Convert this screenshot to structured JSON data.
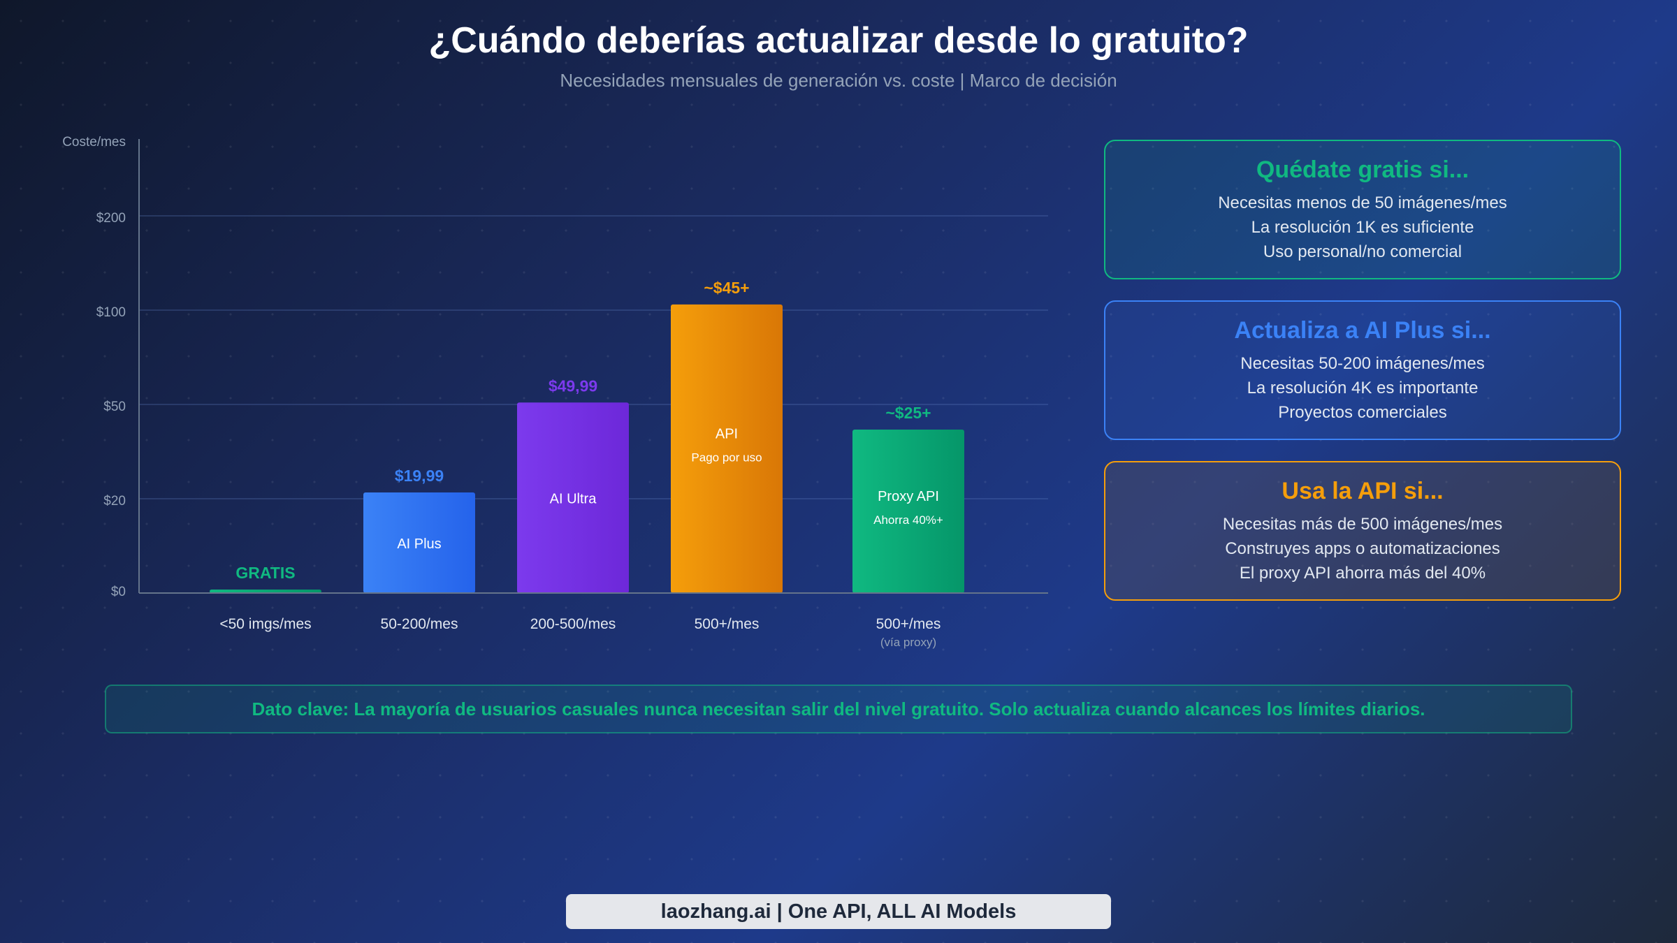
{
  "header": {
    "title": "¿Cuándo deberías actualizar desde lo gratuito?",
    "subtitle": "Necesidades mensuales de generación vs. coste | Marco de decisión"
  },
  "chart_data": {
    "type": "bar",
    "ylabel": "Coste/mes",
    "y_ticks": [
      "$0",
      "$20",
      "$50",
      "$100",
      "$200"
    ],
    "y_tick_values": [
      0,
      20,
      50,
      100,
      200
    ],
    "scale": "non-linear (evenly spaced ticks)",
    "categories": [
      "<50 imgs/mes",
      "50-200/mes",
      "200-500/mes",
      "500+/mes",
      "500+/mes"
    ],
    "category_notes": [
      "",
      "",
      "",
      "",
      "(vía proxy)"
    ],
    "values": [
      0,
      22,
      51,
      106,
      42
    ],
    "price_labels": [
      "GRATIS",
      "$19,99",
      "$49,99",
      "~$45+",
      "~$25+"
    ],
    "bar_names": [
      "",
      "AI Plus",
      "AI Ultra",
      "API",
      "Proxy API"
    ],
    "bar_notes": [
      "",
      "",
      "",
      "Pago por uso",
      "Ahorra 40%+"
    ],
    "colors": [
      [
        "#10b981",
        "#059669"
      ],
      [
        "#3b82f6",
        "#2563eb"
      ],
      [
        "#7c3aed",
        "#6d28d9"
      ],
      [
        "#f59e0b",
        "#d97706"
      ],
      [
        "#10b981",
        "#059669"
      ]
    ],
    "label_colors": [
      "#10b981",
      "#3b82f6",
      "#7c3aed",
      "#f59e0b",
      "#10b981"
    ],
    "grid": true
  },
  "cards": [
    {
      "title": "Quédate gratis si...",
      "color": "#10b981",
      "lines": [
        "Necesitas menos de 50 imágenes/mes",
        "La resolución 1K es suficiente",
        "Uso personal/no comercial"
      ]
    },
    {
      "title": "Actualiza a AI Plus si...",
      "color": "#3b82f6",
      "lines": [
        "Necesitas 50-200 imágenes/mes",
        "La resolución 4K es importante",
        "Proyectos comerciales"
      ]
    },
    {
      "title": "Usa la API si...",
      "color": "#f59e0b",
      "lines": [
        "Necesitas más de 500 imágenes/mes",
        "Construyes apps o automatizaciones",
        "El proxy API ahorra más del 40%"
      ]
    }
  ],
  "banner": "Dato clave: La mayoría de usuarios casuales nunca necesitan salir del nivel gratuito. Solo actualiza cuando alcances los límites diarios.",
  "footer": "laozhang.ai | One API, ALL AI Models"
}
